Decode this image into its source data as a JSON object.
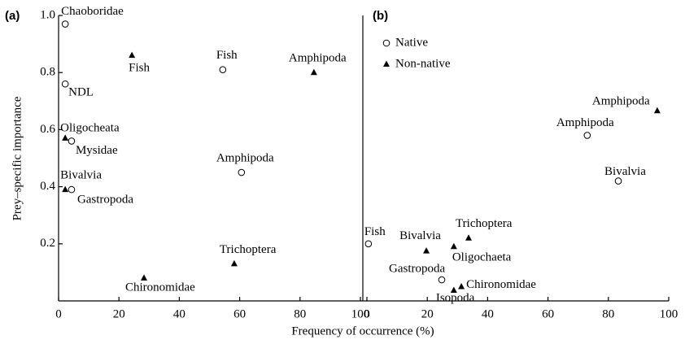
{
  "chart_data": [
    {
      "type": "scatter",
      "panel": "(a)",
      "xlabel": "Frequency of occurrence (%)",
      "ylabel": "Prey–specific importance",
      "xlim": [
        0,
        100
      ],
      "ylim": [
        0,
        1
      ],
      "xticks": [
        0,
        20,
        40,
        60,
        80,
        100
      ],
      "yticks": [
        0.2,
        0.4,
        0.6,
        0.8,
        {
          "value": 1,
          "label": "1.0"
        }
      ],
      "series": [
        {
          "name": "Native",
          "marker": "circle",
          "color": "#000000",
          "labels": [
            "Chaoboridae",
            "Fish",
            "NDL",
            "Mysidae",
            "Amphipoda",
            "Gastropoda"
          ],
          "x": [
            2.2,
            54.4,
            2.2,
            4.3,
            60.6,
            4.3
          ],
          "values": [
            0.97,
            0.81,
            0.76,
            0.56,
            0.45,
            0.39
          ]
        },
        {
          "name": "Non-native",
          "marker": "triangle",
          "color": "#000000",
          "labels": [
            "Fish",
            "Amphipoda",
            "Oligocheata",
            "Bivalvia",
            "Trichoptera",
            "Chironomidae"
          ],
          "x": [
            24.3,
            84.6,
            2.2,
            2.2,
            58.2,
            28.3
          ],
          "values": [
            0.86,
            0.8,
            0.57,
            0.39,
            0.13,
            0.08
          ]
        }
      ]
    },
    {
      "type": "scatter",
      "panel": "(b)",
      "legend": true,
      "xlim": [
        0,
        100
      ],
      "ylim": [
        0,
        1
      ],
      "xticks": [
        0,
        20,
        40,
        60,
        80,
        100
      ],
      "series": [
        {
          "name": "Native",
          "marker": "circle",
          "color": "#000000",
          "labels": [
            "Amphipoda",
            "Bivalvia",
            "Fish",
            "Gastropoda"
          ],
          "x": [
            73.0,
            83.3,
            0.5,
            24.8
          ],
          "values": [
            0.58,
            0.42,
            0.2,
            0.074
          ]
        },
        {
          "name": "Non-native",
          "marker": "triangle",
          "color": "#000000",
          "labels": [
            "Amphipoda",
            "Trichoptera",
            "Bivalvia",
            "Oligochaeta",
            "Chironomidae",
            "Isopoda"
          ],
          "x": [
            96.2,
            33.7,
            19.7,
            28.8,
            31.3,
            28.8
          ],
          "values": [
            0.666,
            0.22,
            0.175,
            0.19,
            0.05,
            0.037
          ]
        }
      ]
    }
  ]
}
